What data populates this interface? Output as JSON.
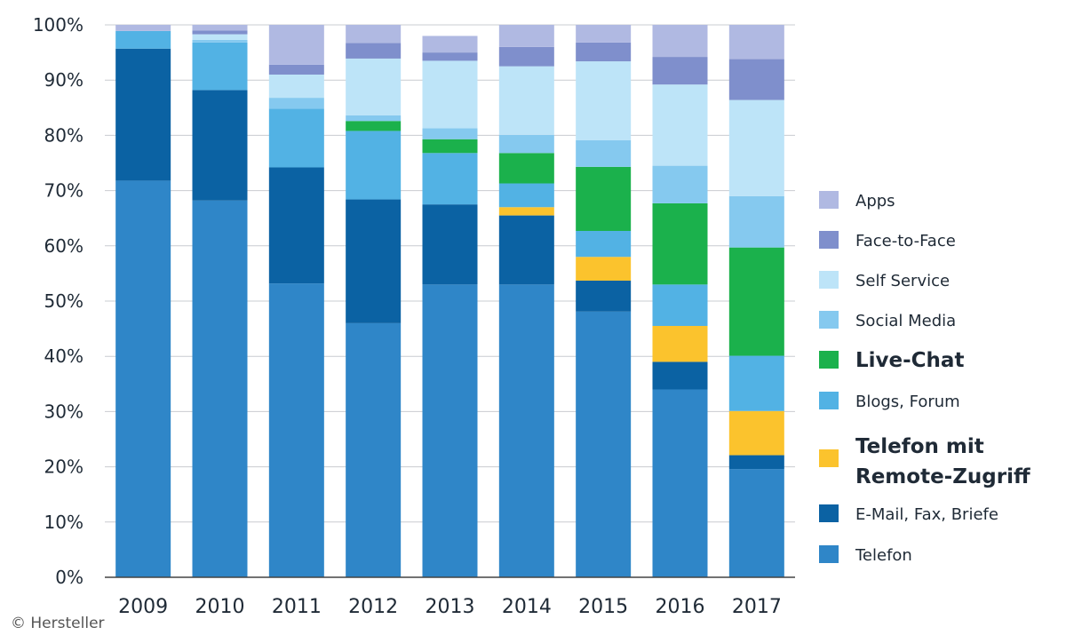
{
  "chart_data": {
    "type": "bar",
    "stacked": true,
    "categories": [
      "2009",
      "2010",
      "2011",
      "2012",
      "2013",
      "2014",
      "2015",
      "2016",
      "2017"
    ],
    "y_tick_labels": [
      "0%",
      "10%",
      "20%",
      "30%",
      "40%",
      "50%",
      "60%",
      "70%",
      "80%",
      "90%",
      "100%"
    ],
    "ylim": [
      0,
      100
    ],
    "grid": true,
    "legend_placement": "right",
    "series": [
      {
        "name": "Telefon",
        "color": "#2f86c8",
        "values": [
          71.8,
          68.2,
          53.2,
          46.0,
          53.0,
          53.0,
          48.1,
          34.0,
          19.6
        ],
        "bold": false
      },
      {
        "name": "E-Mail, Fax, Briefe",
        "color": "#0b62a3",
        "values": [
          23.9,
          20.0,
          21.0,
          22.4,
          14.5,
          12.5,
          5.6,
          5.0,
          2.5
        ],
        "bold": false
      },
      {
        "name": "Telefon mit Remote-Zugriff",
        "color": "#fbc32d",
        "values": [
          0,
          0,
          0,
          0,
          0,
          1.5,
          4.3,
          6.5,
          8.0
        ],
        "bold": true
      },
      {
        "name": "Blogs, Forum",
        "color": "#52b2e4",
        "values": [
          3.2,
          8.6,
          10.6,
          12.4,
          9.3,
          4.3,
          4.7,
          7.5,
          10.0
        ],
        "bold": false
      },
      {
        "name": "Live-Chat",
        "color": "#1bb14c",
        "values": [
          0,
          0,
          0,
          1.8,
          2.5,
          5.5,
          11.6,
          14.7,
          19.6
        ],
        "bold": true
      },
      {
        "name": "Social Media",
        "color": "#85c9ef",
        "values": [
          0,
          0.5,
          2.0,
          1.0,
          2.0,
          3.3,
          4.8,
          6.8,
          9.3
        ],
        "bold": false
      },
      {
        "name": "Self Service",
        "color": "#bde4f8",
        "values": [
          0,
          1.0,
          4.2,
          10.3,
          12.2,
          12.4,
          14.3,
          14.7,
          17.4
        ],
        "bold": false
      },
      {
        "name": "Face-to-Face",
        "color": "#7f8fcc",
        "values": [
          0,
          0.7,
          1.8,
          2.8,
          1.5,
          3.5,
          3.4,
          5.0,
          7.4
        ],
        "bold": false
      },
      {
        "name": "Apps",
        "color": "#b0b9e2",
        "values": [
          1.1,
          1.0,
          7.2,
          3.3,
          3.0,
          4.0,
          3.2,
          5.8,
          6.2
        ],
        "bold": false
      }
    ],
    "legend_order": [
      "Apps",
      "Face-to-Face",
      "Self Service",
      "Social Media",
      "Live-Chat",
      "Blogs, Forum",
      "Telefon mit Remote-Zugriff",
      "E-Mail, Fax, Briefe",
      "Telefon"
    ]
  },
  "credit": "© Hersteller"
}
